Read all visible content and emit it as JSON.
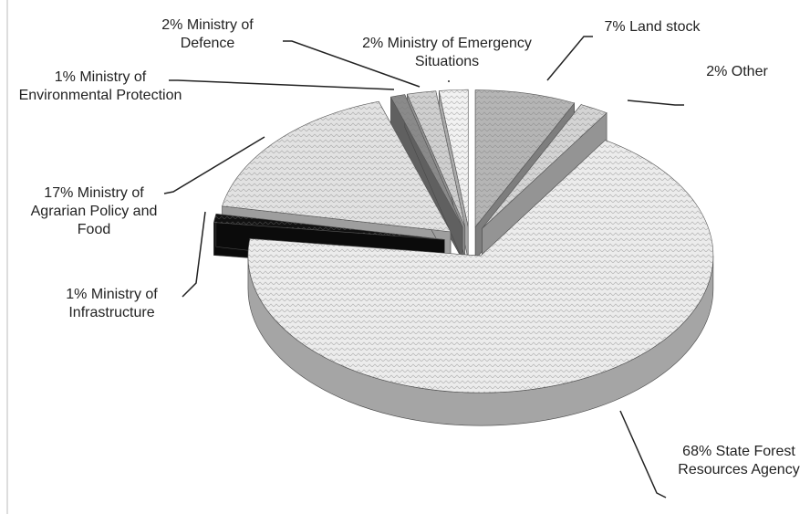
{
  "chart_data": {
    "type": "pie",
    "categories": [
      "Land stock",
      "Other",
      "State Forest Resources Agency",
      "Ministry of Infrastructure",
      "Ministry of Agrarian Policy and Food",
      "Ministry of Environmental Protection",
      "Ministry of Defence",
      "Ministry of Emergency Situations"
    ],
    "values": [
      7,
      2,
      68,
      1,
      17,
      1,
      2,
      2
    ],
    "value_labels": [
      "7%",
      "2%",
      "68%",
      "1%",
      "17%",
      "1%",
      "2%",
      "2%"
    ],
    "colors": [
      "#b5b5b5",
      "#d4d4d4",
      "#ececec",
      "#111111",
      "#e2e2e2",
      "#8a8a8a",
      "#cfcfcf",
      "#f2f2f2"
    ]
  }
}
